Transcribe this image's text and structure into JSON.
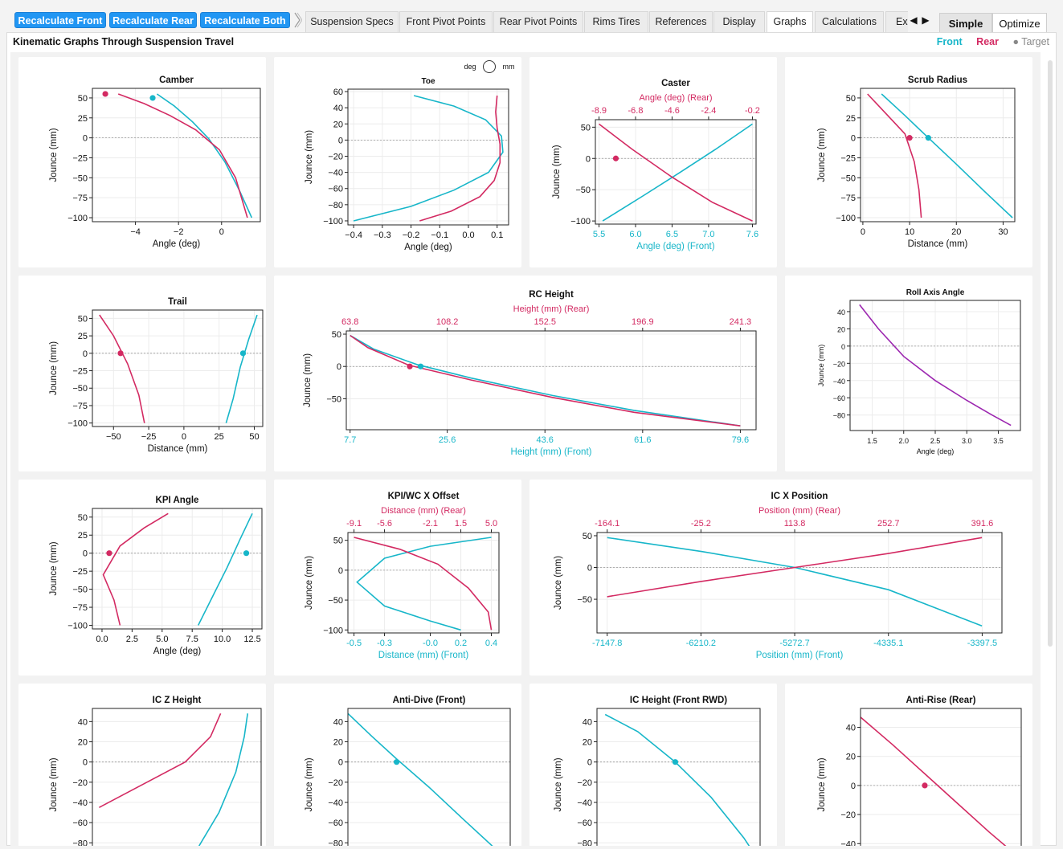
{
  "toolbar": {
    "recalc_front": "Recalculate Front",
    "recalc_rear": "Recalculate Rear",
    "recalc_both": "Recalculate Both",
    "tabs": [
      "Suspension Specs",
      "Front Pivot Points",
      "Rear Pivot Points",
      "Rims  Tires",
      "References",
      "Display",
      "Graphs",
      "Calculations",
      "Export"
    ],
    "active_tab": "Graphs",
    "mode_simple": "Simple",
    "mode_optimize": "Optimize",
    "arrow_left": "◀",
    "arrow_right": "▶"
  },
  "page": {
    "title": "Kinematic Graphs Through Suspension Travel",
    "legend_front": "Front",
    "legend_rear": "Rear",
    "legend_target": "● Target"
  },
  "colors": {
    "front": "#17b6c9",
    "rear": "#d32a62",
    "roll": "#9c27b0",
    "accent": "#2196f3"
  },
  "chart_data": [
    {
      "id": "camber",
      "type": "line",
      "title": "Camber",
      "xlabel": "Angle (deg)",
      "ylabel": "Jounce (mm)",
      "xlim": [
        -6,
        1.8
      ],
      "ylim": [
        -105,
        62
      ],
      "xticks": [
        -4,
        -2,
        0
      ],
      "xticklabels": [
        "−4",
        "−2",
        "0"
      ],
      "yticks": [
        50,
        25,
        0,
        -25,
        -50,
        -75,
        -100
      ],
      "yticklabels": [
        "50",
        "25",
        "0",
        "−25",
        "−50",
        "−75",
        "−100"
      ],
      "series": [
        {
          "role": "front",
          "x": [
            -3.0,
            -2.2,
            -1.35,
            -0.6,
            0.15,
            0.85,
            1.4
          ],
          "y": [
            55,
            40,
            20,
            -1,
            -30,
            -67,
            -100
          ]
        },
        {
          "role": "rear",
          "x": [
            -4.8,
            -3.6,
            -2.4,
            -1.2,
            -0.1,
            0.65,
            1.2
          ],
          "y": [
            55,
            43,
            28,
            10,
            -15,
            -50,
            -100
          ]
        }
      ],
      "markers": [
        {
          "role": "front",
          "x": -3.2,
          "y": 50
        },
        {
          "role": "rear",
          "x": -5.4,
          "y": 55
        }
      ]
    },
    {
      "id": "toe",
      "type": "line",
      "title": "Toe",
      "toggle_left": "deg",
      "toggle_right": "mm",
      "xlabel": "Angle (deg)",
      "ylabel": "Jounce (mm)",
      "xlim": [
        -0.42,
        0.14
      ],
      "ylim": [
        -105,
        63
      ],
      "xticks": [
        -0.4,
        -0.3,
        -0.2,
        -0.1,
        0.0,
        0.1
      ],
      "xticklabels": [
        "−0.4",
        "−0.3",
        "−0.2",
        "−0.1",
        "0.0",
        "0.1"
      ],
      "yticks": [
        60,
        40,
        20,
        0,
        -20,
        -40,
        -60,
        -80,
        -100
      ],
      "yticklabels": [
        "60",
        "40",
        "20",
        "0",
        "−20",
        "−40",
        "−60",
        "−80",
        "−100"
      ],
      "series": [
        {
          "role": "front",
          "x": [
            -0.19,
            -0.05,
            0.06,
            0.115,
            0.12,
            0.07,
            -0.05,
            -0.2,
            -0.4
          ],
          "y": [
            55,
            42,
            25,
            5,
            -15,
            -40,
            -62,
            -82,
            -100
          ]
        },
        {
          "role": "rear",
          "x": [
            0.1,
            0.095,
            0.1,
            0.11,
            0.11,
            0.09,
            0.04,
            -0.06,
            -0.17
          ],
          "y": [
            55,
            35,
            15,
            -5,
            -28,
            -50,
            -70,
            -88,
            -100
          ]
        }
      ],
      "markers": []
    },
    {
      "id": "caster",
      "type": "line",
      "title": "Caster",
      "xlabel": "Angle (deg) (Front)",
      "x2label": "Angle (deg) (Rear)",
      "ylabel": "Jounce (mm)",
      "xlim": [
        5.45,
        7.65
      ],
      "ylim": [
        -105,
        62
      ],
      "xticks": [
        5.5,
        6.0,
        6.5,
        7.0,
        7.6
      ],
      "xticklabels": [
        "5.5",
        "6.0",
        "6.5",
        "7.0",
        "7.6"
      ],
      "x2ticklabels": [
        "-8.9",
        "-6.8",
        "-4.6",
        "-2.4",
        "-0.2"
      ],
      "yticks": [
        50,
        0,
        -50,
        -100
      ],
      "yticklabels": [
        "50",
        "0",
        "−50",
        "−100"
      ],
      "series": [
        {
          "role": "front",
          "x": [
            5.55,
            6.1,
            6.6,
            7.1,
            7.6
          ],
          "y": [
            -100,
            -60,
            -23,
            15,
            55
          ]
        },
        {
          "role": "rear",
          "x": [
            5.5,
            5.95,
            6.5,
            7.05,
            7.6
          ],
          "y": [
            55,
            15,
            -30,
            -70,
            -100
          ]
        }
      ],
      "markers": [
        {
          "role": "rear",
          "x": 5.73,
          "y": 0
        }
      ]
    },
    {
      "id": "scrub",
      "type": "line",
      "title": "Scrub Radius",
      "xlabel": "Distance (mm)",
      "ylabel": "Jounce (mm)",
      "xlim": [
        -0.5,
        32.5
      ],
      "ylim": [
        -105,
        62
      ],
      "xticks": [
        0,
        10,
        20,
        30
      ],
      "xticklabels": [
        "0",
        "10",
        "20",
        "30"
      ],
      "yticks": [
        50,
        25,
        0,
        -25,
        -50,
        -75,
        -100
      ],
      "yticklabels": [
        "50",
        "25",
        "0",
        "−25",
        "−50",
        "−75",
        "−100"
      ],
      "series": [
        {
          "role": "front",
          "x": [
            4,
            9,
            14,
            20,
            26,
            32
          ],
          "y": [
            55,
            28,
            0,
            -33,
            -67,
            -100
          ]
        },
        {
          "role": "rear",
          "x": [
            1,
            5,
            9,
            11,
            12,
            12.5
          ],
          "y": [
            55,
            30,
            5,
            -30,
            -65,
            -100
          ]
        }
      ],
      "markers": [
        {
          "role": "front",
          "x": 14,
          "y": 0
        },
        {
          "role": "rear",
          "x": 10,
          "y": 0
        }
      ]
    },
    {
      "id": "trail",
      "type": "line",
      "title": "Trail",
      "xlabel": "Distance (mm)",
      "ylabel": "Jounce (mm)",
      "xlim": [
        -65,
        56
      ],
      "ylim": [
        -105,
        62
      ],
      "xticks": [
        -50,
        -25,
        0,
        25,
        50
      ],
      "xticklabels": [
        "−50",
        "−25",
        "0",
        "25",
        "50"
      ],
      "yticks": [
        50,
        25,
        0,
        -25,
        -50,
        -75,
        -100
      ],
      "yticklabels": [
        "50",
        "25",
        "0",
        "−25",
        "−50",
        "−75",
        "−100"
      ],
      "series": [
        {
          "role": "front",
          "x": [
            30,
            35,
            40,
            46,
            52
          ],
          "y": [
            -100,
            -65,
            -20,
            20,
            55
          ]
        },
        {
          "role": "rear",
          "x": [
            -60,
            -50,
            -40,
            -32,
            -28
          ],
          "y": [
            55,
            25,
            -15,
            -60,
            -100
          ]
        }
      ],
      "markers": [
        {
          "role": "front",
          "x": 42,
          "y": 0
        },
        {
          "role": "rear",
          "x": -45,
          "y": 0
        }
      ]
    },
    {
      "id": "rc",
      "type": "line",
      "title": "RC Height",
      "xlabel": "Height (mm) (Front)",
      "x2label": "Height (mm) (Rear)",
      "ylabel": "Jounce (mm)",
      "xlim": [
        7.0,
        82.5
      ],
      "ylim": [
        -98,
        55
      ],
      "xticks": [
        7.7,
        25.6,
        43.6,
        61.6,
        79.6
      ],
      "xticklabels": [
        "7.7",
        "25.6",
        "43.6",
        "61.6",
        "79.6"
      ],
      "x2ticklabels": [
        "63.8",
        "108.2",
        "152.5",
        "196.9",
        "241.3"
      ],
      "yticks": [
        50,
        0,
        -50
      ],
      "yticklabels": [
        "50",
        "0",
        "−50"
      ],
      "series": [
        {
          "role": "front",
          "x": [
            7.7,
            12,
            20,
            30,
            45,
            60,
            79.6
          ],
          "y": [
            48,
            27,
            3,
            -18,
            -45,
            -68,
            -92
          ]
        },
        {
          "role": "rear",
          "x": [
            7.7,
            11,
            18.5,
            30,
            45,
            60,
            79.6
          ],
          "y": [
            48,
            29,
            2,
            -21,
            -48,
            -71,
            -92
          ]
        }
      ],
      "markers": [
        {
          "role": "front",
          "x": 20.7,
          "y": 0
        },
        {
          "role": "rear",
          "x": 18.7,
          "y": 0
        }
      ]
    },
    {
      "id": "roll",
      "type": "line",
      "title": "Roll Axis Angle",
      "xlabel": "Angle (deg)",
      "ylabel": "Jounce (mm)",
      "small": true,
      "xlim": [
        1.15,
        3.85
      ],
      "ylim": [
        -98,
        53
      ],
      "xticks": [
        1.5,
        2.0,
        2.5,
        3.0,
        3.5
      ],
      "xticklabels": [
        "1.5",
        "2.0",
        "2.5",
        "3.0",
        "3.5"
      ],
      "yticks": [
        40,
        20,
        0,
        -20,
        -40,
        -60,
        -80
      ],
      "yticklabels": [
        "40",
        "20",
        "0",
        "−20",
        "−40",
        "−60",
        "−80"
      ],
      "series": [
        {
          "role": "roll",
          "x": [
            1.3,
            1.6,
            2.0,
            2.5,
            3.0,
            3.4,
            3.7
          ],
          "y": [
            48,
            20,
            -12,
            -40,
            -63,
            -80,
            -92
          ]
        }
      ],
      "markers": []
    },
    {
      "id": "kpi",
      "type": "line",
      "title": "KPI Angle",
      "xlabel": "Angle (deg)",
      "ylabel": "Jounce (mm)",
      "xlim": [
        -0.8,
        13.3
      ],
      "ylim": [
        -105,
        62
      ],
      "xticks": [
        0,
        2.5,
        5,
        7.5,
        10,
        12.5
      ],
      "xticklabels": [
        "0.0",
        "2.5",
        "5.0",
        "7.5",
        "10.0",
        "12.5"
      ],
      "yticks": [
        50,
        25,
        0,
        -25,
        -50,
        -75,
        -100
      ],
      "yticklabels": [
        "50",
        "25",
        "0",
        "−25",
        "−50",
        "−75",
        "−100"
      ],
      "series": [
        {
          "role": "front",
          "x": [
            8,
            9.2,
            10.4,
            11.5,
            12.5
          ],
          "y": [
            -100,
            -60,
            -20,
            20,
            55
          ]
        },
        {
          "role": "rear",
          "x": [
            5.5,
            3.5,
            1.5,
            0.1,
            1.0,
            1.5
          ],
          "y": [
            55,
            35,
            10,
            -30,
            -65,
            -100
          ]
        }
      ],
      "markers": [
        {
          "role": "front",
          "x": 12,
          "y": 0
        },
        {
          "role": "rear",
          "x": 0.6,
          "y": 0
        }
      ]
    },
    {
      "id": "kpiwc",
      "type": "line",
      "title": "KPI/WC X Offset",
      "xlabel": "Distance (mm) (Front)",
      "x2label": "Distance (mm) (Rear)",
      "ylabel": "Jounce (mm)",
      "xlim": [
        -0.54,
        0.45
      ],
      "ylim": [
        -105,
        63
      ],
      "xticks": [
        -0.5,
        -0.3,
        -0.0,
        0.2,
        0.4
      ],
      "xticklabels": [
        "-0.5",
        "-0.3",
        "-0.0",
        "0.2",
        "0.4"
      ],
      "x2ticklabels": [
        "-9.1",
        "-5.6",
        "-2.1",
        "1.5",
        "5.0"
      ],
      "yticks": [
        50,
        0,
        -50,
        -100
      ],
      "yticklabels": [
        "50",
        "0",
        "−50",
        "−100"
      ],
      "series": [
        {
          "role": "front",
          "x": [
            0.4,
            0.0,
            -0.3,
            -0.48,
            -0.3,
            0.0,
            0.2
          ],
          "y": [
            55,
            40,
            20,
            -20,
            -60,
            -85,
            -100
          ]
        },
        {
          "role": "rear",
          "x": [
            -0.5,
            -0.2,
            0.05,
            0.25,
            0.38,
            0.4
          ],
          "y": [
            55,
            35,
            10,
            -30,
            -70,
            -100
          ]
        }
      ],
      "markers": []
    },
    {
      "id": "icx",
      "type": "line",
      "title": "IC X Position",
      "xlabel": "Position (mm) (Front)",
      "x2label": "Position (mm) (Rear)",
      "ylabel": "Jounce (mm)",
      "xlim": [
        -7250,
        -3200
      ],
      "ylim": [
        -103,
        55
      ],
      "xticks": [
        -7147.8,
        -6210.2,
        -5272.7,
        -4335.1,
        -3397.5
      ],
      "xticklabels": [
        "-7147.8",
        "-6210.2",
        "-5272.7",
        "-4335.1",
        "-3397.5"
      ],
      "x2ticklabels": [
        "-164.1",
        "-25.2",
        "113.8",
        "252.7",
        "391.6"
      ],
      "yticks": [
        50,
        0,
        -50
      ],
      "yticklabels": [
        "50",
        "0",
        "−50"
      ],
      "series": [
        {
          "role": "front",
          "x": [
            -7148,
            -6200,
            -5272,
            -4335,
            -3400
          ],
          "y": [
            47,
            25,
            0,
            -35,
            -92
          ]
        },
        {
          "role": "rear",
          "x": [
            -7148,
            -6210,
            -5272,
            -4335,
            -3400
          ],
          "y": [
            -46,
            -22,
            0,
            22,
            47
          ]
        }
      ],
      "markers": []
    },
    {
      "id": "icz",
      "type": "line",
      "title": "IC Z Height",
      "xlabel": "",
      "ylabel": "Jounce (mm)",
      "xlim": [
        0,
        100
      ],
      "ylim": [
        -98,
        53
      ],
      "xticks": [],
      "xticklabels": [],
      "yticks": [
        40,
        20,
        0,
        -20,
        -40,
        -60,
        -80
      ],
      "yticklabels": [
        "40",
        "20",
        "0",
        "−20",
        "−40",
        "−60",
        "−80"
      ],
      "series": [
        {
          "role": "front",
          "x": [
            60,
            75,
            85,
            90,
            92
          ],
          "y": [
            -92,
            -50,
            -10,
            25,
            48
          ]
        },
        {
          "role": "rear",
          "x": [
            4,
            30,
            55,
            70,
            76
          ],
          "y": [
            -45,
            -22,
            0,
            25,
            48
          ]
        }
      ],
      "markers": []
    },
    {
      "id": "antidive",
      "type": "line",
      "title": "Anti-Dive (Front)",
      "xlabel": "",
      "ylabel": "Jounce (mm)",
      "xlim": [
        0,
        100
      ],
      "ylim": [
        -98,
        53
      ],
      "xticks": [],
      "xticklabels": [],
      "yticks": [
        40,
        20,
        0,
        -20,
        -40,
        -60,
        -80
      ],
      "yticklabels": [
        "40",
        "20",
        "0",
        "−20",
        "−40",
        "−60",
        "−80"
      ],
      "series": [
        {
          "role": "front",
          "x": [
            0,
            15,
            30,
            50,
            70,
            95
          ],
          "y": [
            48,
            25,
            3,
            -25,
            -55,
            -92
          ]
        }
      ],
      "markers": [
        {
          "role": "front",
          "x": 30,
          "y": 0
        }
      ]
    },
    {
      "id": "icheight",
      "type": "line",
      "title": "IC Height (Front RWD)",
      "xlabel": "",
      "ylabel": "Jounce (mm)",
      "xlim": [
        0,
        100
      ],
      "ylim": [
        -98,
        53
      ],
      "xticks": [],
      "xticklabels": [],
      "yticks": [
        40,
        20,
        0,
        -20,
        -40,
        -60,
        -80
      ],
      "yticklabels": [
        "40",
        "20",
        "0",
        "−20",
        "−40",
        "−60",
        "−80"
      ],
      "series": [
        {
          "role": "front",
          "x": [
            5,
            25,
            48,
            70,
            90,
            97
          ],
          "y": [
            47,
            30,
            0,
            -35,
            -75,
            -92
          ]
        }
      ],
      "markers": [
        {
          "role": "front",
          "x": 48,
          "y": 0
        }
      ]
    },
    {
      "id": "antirise",
      "type": "line",
      "title": "Anti-Rise (Rear)",
      "xlabel": "",
      "ylabel": "Jounce (mm)",
      "xlim": [
        0,
        100
      ],
      "ylim": [
        -52,
        53
      ],
      "xticks": [],
      "xticklabels": [],
      "yticks": [
        40,
        20,
        0,
        -20,
        -40
      ],
      "yticklabels": [
        "40",
        "20",
        "0",
        "−20",
        "−40"
      ],
      "series": [
        {
          "role": "rear",
          "x": [
            0,
            20,
            40,
            60,
            80,
            96
          ],
          "y": [
            47,
            28,
            8,
            -12,
            -32,
            -47
          ]
        }
      ],
      "markers": [
        {
          "role": "rear",
          "x": 40,
          "y": 0
        }
      ]
    }
  ]
}
